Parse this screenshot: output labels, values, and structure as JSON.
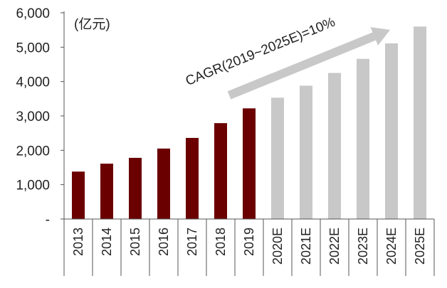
{
  "chart_data": {
    "type": "bar",
    "unit_label": "(亿元)",
    "categories": [
      "2013",
      "2014",
      "2015",
      "2016",
      "2017",
      "2018",
      "2019",
      "2020E",
      "2021E",
      "2022E",
      "2023E",
      "2024E",
      "2025E"
    ],
    "values": [
      1380,
      1610,
      1780,
      2050,
      2360,
      2790,
      3220,
      3530,
      3880,
      4250,
      4660,
      5110,
      5600
    ],
    "estimate_flags": [
      false,
      false,
      false,
      false,
      false,
      false,
      false,
      true,
      true,
      true,
      true,
      true,
      true
    ],
    "ylim": [
      0,
      6000
    ],
    "yticks": [
      0,
      1000,
      2000,
      3000,
      4000,
      5000,
      6000
    ],
    "ytick_labels": [
      "-",
      "1,000",
      "2,000",
      "3,000",
      "4,000",
      "5,000",
      "6,000"
    ],
    "annotation": "CAGR(2019~2025E)=10%",
    "colors": {
      "actual": "#6b0000",
      "estimate": "#c8c8c8",
      "arrow": "#c8c8c8",
      "axis": "#555555"
    },
    "grid": false,
    "legend": "none"
  }
}
